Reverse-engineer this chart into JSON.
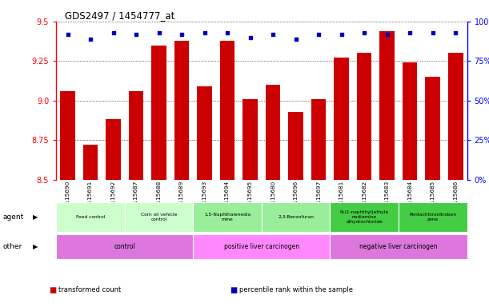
{
  "title": "GDS2497 / 1454777_at",
  "samples": [
    "GSM115690",
    "GSM115691",
    "GSM115692",
    "GSM115687",
    "GSM115688",
    "GSM115689",
    "GSM115693",
    "GSM115694",
    "GSM115695",
    "GSM115680",
    "GSM115696",
    "GSM115697",
    "GSM115681",
    "GSM115682",
    "GSM115683",
    "GSM115684",
    "GSM115685",
    "GSM115686"
  ],
  "bar_values": [
    9.06,
    8.72,
    8.88,
    9.06,
    9.35,
    9.38,
    9.09,
    9.38,
    9.01,
    9.1,
    8.93,
    9.01,
    9.27,
    9.3,
    9.44,
    9.24,
    9.15,
    9.3
  ],
  "percentile_values": [
    92,
    89,
    93,
    92,
    93,
    92,
    93,
    93,
    90,
    92,
    89,
    92,
    92,
    93,
    92,
    93,
    93,
    93
  ],
  "bar_color": "#cc0000",
  "percentile_color": "#0000bb",
  "ylim_left": [
    8.5,
    9.5
  ],
  "ylim_right": [
    0,
    100
  ],
  "yticks_left": [
    8.5,
    8.75,
    9.0,
    9.25,
    9.5
  ],
  "yticks_right": [
    0,
    25,
    50,
    75,
    100
  ],
  "agent_groups": [
    {
      "label": "Feed control",
      "start": 0,
      "end": 3,
      "color": "#ccffcc"
    },
    {
      "label": "Corn oil vehicle\ncontrol",
      "start": 3,
      "end": 6,
      "color": "#ccffcc"
    },
    {
      "label": "1,5-Naphthalenedia\nmine",
      "start": 6,
      "end": 9,
      "color": "#99ee99"
    },
    {
      "label": "2,3-Benzofuran",
      "start": 9,
      "end": 12,
      "color": "#99ee99"
    },
    {
      "label": "N-(1-naphthyl)ethyle\nnediamine\ndihydrochloride",
      "start": 12,
      "end": 15,
      "color": "#44cc44"
    },
    {
      "label": "Pentachloronitroben\nzene",
      "start": 15,
      "end": 18,
      "color": "#44cc44"
    }
  ],
  "other_groups": [
    {
      "label": "control",
      "start": 0,
      "end": 6,
      "color": "#dd77dd"
    },
    {
      "label": "positive liver carcinogen",
      "start": 6,
      "end": 12,
      "color": "#ff88ff"
    },
    {
      "label": "negative liver carcinogen",
      "start": 12,
      "end": 18,
      "color": "#dd77dd"
    }
  ],
  "legend_items": [
    {
      "label": "transformed count",
      "color": "#cc0000"
    },
    {
      "label": "percentile rank within the sample",
      "color": "#0000bb"
    }
  ]
}
